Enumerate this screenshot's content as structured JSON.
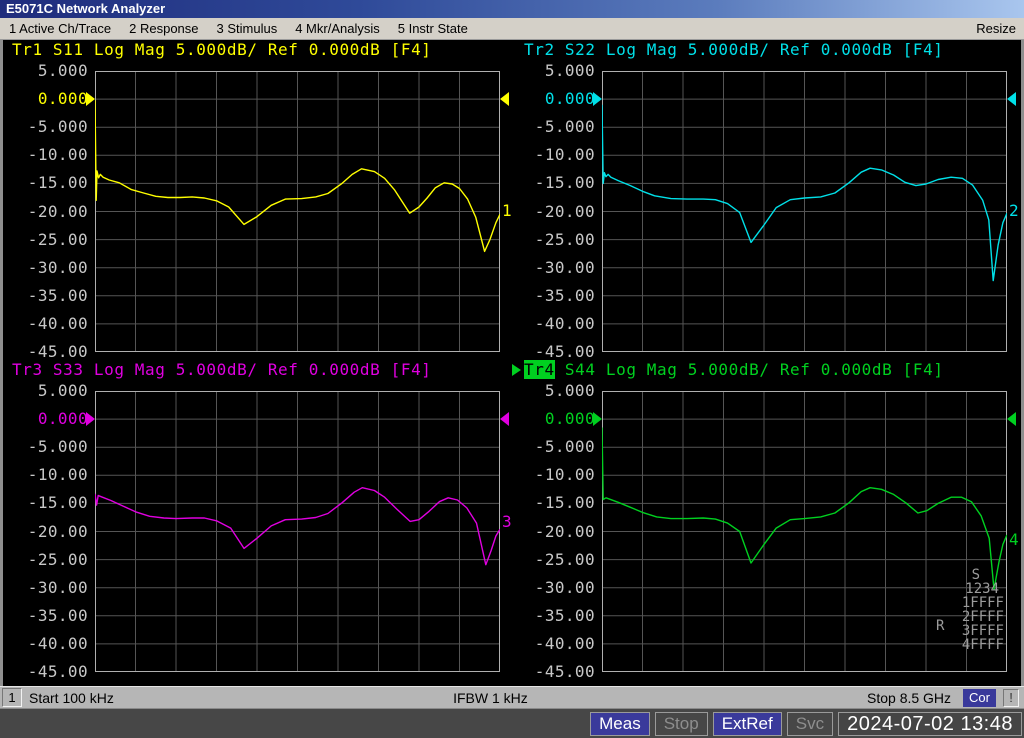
{
  "window": {
    "title": "E5071C Network Analyzer",
    "resize_label": "Resize"
  },
  "menu": {
    "items": [
      "1 Active Ch/Trace",
      "2 Response",
      "3 Stimulus",
      "4 Mkr/Analysis",
      "5 Instr State"
    ]
  },
  "status_bar": {
    "channel": "1",
    "start": "Start 100 kHz",
    "ifbw": "IFBW 1 kHz",
    "stop": "Stop 8.5 GHz",
    "correction": "Cor",
    "alert": "!"
  },
  "instrument_bar": {
    "segments": [
      {
        "label": "Meas",
        "state": "on"
      },
      {
        "label": "Stop",
        "state": "off"
      },
      {
        "label": "ExtRef",
        "state": "on"
      },
      {
        "label": "Svc",
        "state": "off"
      },
      {
        "label": "2024-07-02 13:48",
        "state": "value"
      }
    ]
  },
  "port_status": {
    "stimulus_label": "S",
    "receiver_label": "R",
    "lines": [
      "1234",
      "1FFFF",
      "2FFFF",
      "3FFFF",
      "4FFFF"
    ]
  },
  "chart_data": [
    {
      "type": "line",
      "trace": "Tr1",
      "parameter": "S11",
      "header_prefix": "Tr1",
      "header_rest": " S11 Log Mag 5.000dB/ Ref 0.000dB [F4]",
      "active": false,
      "color": "#ffff00",
      "number": "1",
      "number_y_db": -20.1,
      "xlabel_start": "100 kHz",
      "xlabel_stop": "8.5 GHz",
      "ylim": [
        -45,
        5
      ],
      "scale_db_per_div": 5,
      "y_ticks": [
        "5.000",
        "0.000",
        "-5.000",
        "-10.00",
        "-15.00",
        "-20.00",
        "-25.00",
        "-30.00",
        "-35.00",
        "-40.00",
        "-45.00"
      ],
      "ref_tick_index": 1,
      "points": [
        [
          0,
          -0.2
        ],
        [
          0.003,
          -18
        ],
        [
          0.005,
          -12.8
        ],
        [
          0.009,
          -14
        ],
        [
          0.013,
          -13.4
        ],
        [
          0.02,
          -13.9
        ],
        [
          0.035,
          -14.4
        ],
        [
          0.06,
          -14.9
        ],
        [
          0.09,
          -16.1
        ],
        [
          0.12,
          -16.7
        ],
        [
          0.15,
          -17.3
        ],
        [
          0.18,
          -17.5
        ],
        [
          0.21,
          -17.5
        ],
        [
          0.24,
          -17.4
        ],
        [
          0.27,
          -17.6
        ],
        [
          0.3,
          -18.1
        ],
        [
          0.33,
          -19.2
        ],
        [
          0.368,
          -22.3
        ],
        [
          0.4,
          -20.9
        ],
        [
          0.435,
          -18.9
        ],
        [
          0.47,
          -17.8
        ],
        [
          0.51,
          -17.7
        ],
        [
          0.545,
          -17.4
        ],
        [
          0.575,
          -16.8
        ],
        [
          0.61,
          -15
        ],
        [
          0.635,
          -13.4
        ],
        [
          0.658,
          -12.4
        ],
        [
          0.69,
          -12.9
        ],
        [
          0.715,
          -14.1
        ],
        [
          0.74,
          -16.2
        ],
        [
          0.777,
          -20.3
        ],
        [
          0.8,
          -19.2
        ],
        [
          0.82,
          -17.6
        ],
        [
          0.84,
          -15.8
        ],
        [
          0.862,
          -14.9
        ],
        [
          0.882,
          -15.1
        ],
        [
          0.9,
          -15.9
        ],
        [
          0.92,
          -17.8
        ],
        [
          0.94,
          -21
        ],
        [
          0.962,
          -27.1
        ],
        [
          0.975,
          -25
        ],
        [
          0.99,
          -22
        ],
        [
          1,
          -20.5
        ]
      ]
    },
    {
      "type": "line",
      "trace": "Tr2",
      "parameter": "S22",
      "header_prefix": "Tr2",
      "header_rest": " S22 Log Mag 5.000dB/ Ref 0.000dB [F4]",
      "active": false,
      "color": "#00e0e8",
      "number": "2",
      "number_y_db": -20.1,
      "xlabel_start": "100 kHz",
      "xlabel_stop": "8.5 GHz",
      "ylim": [
        -45,
        5
      ],
      "scale_db_per_div": 5,
      "y_ticks": [
        "5.000",
        "0.000",
        "-5.000",
        "-10.00",
        "-15.00",
        "-20.00",
        "-25.00",
        "-30.00",
        "-35.00",
        "-40.00",
        "-45.00"
      ],
      "ref_tick_index": 1,
      "points": [
        [
          0,
          -1
        ],
        [
          0.003,
          -15
        ],
        [
          0.006,
          -13.1
        ],
        [
          0.01,
          -13.8
        ],
        [
          0.015,
          -13.4
        ],
        [
          0.022,
          -13.9
        ],
        [
          0.04,
          -14.5
        ],
        [
          0.07,
          -15.4
        ],
        [
          0.1,
          -16.4
        ],
        [
          0.13,
          -17.2
        ],
        [
          0.17,
          -17.7
        ],
        [
          0.21,
          -17.8
        ],
        [
          0.25,
          -17.8
        ],
        [
          0.28,
          -17.9
        ],
        [
          0.31,
          -18.6
        ],
        [
          0.34,
          -20.2
        ],
        [
          0.368,
          -25.5
        ],
        [
          0.4,
          -22.4
        ],
        [
          0.43,
          -19.3
        ],
        [
          0.465,
          -17.9
        ],
        [
          0.5,
          -17.6
        ],
        [
          0.54,
          -17.4
        ],
        [
          0.575,
          -16.7
        ],
        [
          0.61,
          -14.9
        ],
        [
          0.64,
          -13
        ],
        [
          0.662,
          -12.3
        ],
        [
          0.69,
          -12.6
        ],
        [
          0.72,
          -13.5
        ],
        [
          0.748,
          -14.8
        ],
        [
          0.775,
          -15.4
        ],
        [
          0.8,
          -15.1
        ],
        [
          0.83,
          -14.3
        ],
        [
          0.862,
          -13.9
        ],
        [
          0.89,
          -14.1
        ],
        [
          0.915,
          -15.3
        ],
        [
          0.94,
          -18
        ],
        [
          0.955,
          -21.5
        ],
        [
          0.966,
          -32.3
        ],
        [
          0.978,
          -26
        ],
        [
          0.99,
          -22
        ],
        [
          1,
          -20.3
        ]
      ]
    },
    {
      "type": "line",
      "trace": "Tr3",
      "parameter": "S33",
      "header_prefix": "Tr3",
      "header_rest": " S33 Log Mag 5.000dB/ Ref 0.000dB [F4]",
      "active": false,
      "color": "#e000e0",
      "number": "3",
      "number_y_db": -18.5,
      "xlabel_start": "100 kHz",
      "xlabel_stop": "8.5 GHz",
      "ylim": [
        -45,
        5
      ],
      "scale_db_per_div": 5,
      "y_ticks": [
        "5.000",
        "0.000",
        "-5.000",
        "-10.00",
        "-15.00",
        "-20.00",
        "-25.00",
        "-30.00",
        "-35.00",
        "-40.00",
        "-45.00"
      ],
      "ref_tick_index": 1,
      "points": [
        [
          0,
          -13.3
        ],
        [
          0.004,
          -15.3
        ],
        [
          0.008,
          -13.6
        ],
        [
          0.015,
          -13.8
        ],
        [
          0.04,
          -14.5
        ],
        [
          0.07,
          -15.5
        ],
        [
          0.1,
          -16.5
        ],
        [
          0.135,
          -17.3
        ],
        [
          0.17,
          -17.6
        ],
        [
          0.2,
          -17.7
        ],
        [
          0.24,
          -17.6
        ],
        [
          0.27,
          -17.6
        ],
        [
          0.3,
          -18.1
        ],
        [
          0.335,
          -19.4
        ],
        [
          0.368,
          -23
        ],
        [
          0.4,
          -21.2
        ],
        [
          0.435,
          -19
        ],
        [
          0.47,
          -17.9
        ],
        [
          0.51,
          -17.8
        ],
        [
          0.545,
          -17.5
        ],
        [
          0.575,
          -16.8
        ],
        [
          0.61,
          -14.9
        ],
        [
          0.64,
          -13
        ],
        [
          0.66,
          -12.2
        ],
        [
          0.69,
          -12.7
        ],
        [
          0.715,
          -13.9
        ],
        [
          0.745,
          -16
        ],
        [
          0.778,
          -18.2
        ],
        [
          0.8,
          -17.9
        ],
        [
          0.825,
          -16.4
        ],
        [
          0.85,
          -14.7
        ],
        [
          0.872,
          -14
        ],
        [
          0.895,
          -14.4
        ],
        [
          0.918,
          -15.8
        ],
        [
          0.942,
          -18.5
        ],
        [
          0.965,
          -25.9
        ],
        [
          0.978,
          -23.4
        ],
        [
          0.99,
          -20.8
        ],
        [
          1,
          -19.6
        ]
      ]
    },
    {
      "type": "line",
      "trace": "Tr4",
      "parameter": "S44",
      "header_prefix": "Tr4",
      "header_rest": " S44 Log Mag 5.000dB/ Ref 0.000dB [F4]",
      "active": true,
      "color": "#00d020",
      "number": "4",
      "number_y_db": -21.7,
      "xlabel_start": "100 kHz",
      "xlabel_stop": "8.5 GHz",
      "ylim": [
        -45,
        5
      ],
      "scale_db_per_div": 5,
      "y_ticks": [
        "5.000",
        "0.000",
        "-5.000",
        "-10.00",
        "-15.00",
        "-20.00",
        "-25.00",
        "-30.00",
        "-35.00",
        "-40.00",
        "-45.00"
      ],
      "ref_tick_index": 1,
      "points": [
        [
          0,
          -1.5
        ],
        [
          0.003,
          -14.3
        ],
        [
          0.01,
          -14
        ],
        [
          0.04,
          -14.8
        ],
        [
          0.07,
          -15.7
        ],
        [
          0.1,
          -16.6
        ],
        [
          0.135,
          -17.4
        ],
        [
          0.17,
          -17.7
        ],
        [
          0.21,
          -17.7
        ],
        [
          0.25,
          -17.6
        ],
        [
          0.28,
          -17.8
        ],
        [
          0.31,
          -18.5
        ],
        [
          0.34,
          -20
        ],
        [
          0.368,
          -25.6
        ],
        [
          0.4,
          -22.3
        ],
        [
          0.43,
          -19.4
        ],
        [
          0.465,
          -17.9
        ],
        [
          0.5,
          -17.7
        ],
        [
          0.54,
          -17.4
        ],
        [
          0.575,
          -16.7
        ],
        [
          0.61,
          -14.9
        ],
        [
          0.64,
          -12.9
        ],
        [
          0.662,
          -12.2
        ],
        [
          0.69,
          -12.5
        ],
        [
          0.72,
          -13.4
        ],
        [
          0.75,
          -14.9
        ],
        [
          0.78,
          -16.7
        ],
        [
          0.802,
          -16.3
        ],
        [
          0.83,
          -15
        ],
        [
          0.862,
          -13.9
        ],
        [
          0.888,
          -13.9
        ],
        [
          0.912,
          -14.7
        ],
        [
          0.936,
          -17.2
        ],
        [
          0.956,
          -21.2
        ],
        [
          0.968,
          -30.3
        ],
        [
          0.98,
          -25.5
        ],
        [
          0.99,
          -22.3
        ],
        [
          1,
          -20.6
        ]
      ]
    }
  ],
  "colors": {
    "trace1": "#ffff00",
    "trace2": "#00e0e8",
    "trace3": "#e000e0",
    "trace4": "#00d020",
    "grid_line": "#555555",
    "grid_border": "#b0b0b0",
    "axis_label": "#c8c8c8",
    "status_on_bg": "#3a3a9b",
    "titlebar_left": "#1f2c7c",
    "titlebar_right": "#a9c6ee"
  }
}
